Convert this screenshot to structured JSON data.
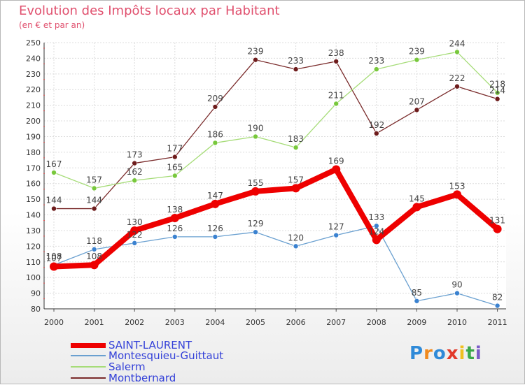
{
  "header": {
    "title": "Evolution des Impôts locaux par Habitant",
    "subtitle": "(en € et par an)"
  },
  "chart_data": {
    "type": "line",
    "title": "Evolution des Impôts locaux par Habitant",
    "subtitle": "(en € et par an)",
    "xlabel": "",
    "ylabel": "",
    "x": [
      "2000",
      "2001",
      "2002",
      "2003",
      "2004",
      "2005",
      "2006",
      "2007",
      "2008",
      "2009",
      "2010",
      "2011"
    ],
    "ylim": [
      80,
      250
    ],
    "yticks": [
      80,
      90,
      100,
      110,
      120,
      130,
      140,
      150,
      160,
      170,
      180,
      190,
      200,
      210,
      220,
      230,
      240,
      250
    ],
    "grid": true,
    "legend_position": "bottom-left",
    "series": [
      {
        "name": "SAINT-LAURENT",
        "color": "#ee0000",
        "marker_color": "#ee0000",
        "values": [
          107,
          108,
          130,
          138,
          147,
          155,
          157,
          169,
          124,
          145,
          153,
          131
        ]
      },
      {
        "name": "Montesquieu-Guittaut",
        "color": "#6aa0d0",
        "marker_color": "#3b82d0",
        "values": [
          108,
          118,
          122,
          126,
          126,
          129,
          120,
          127,
          133,
          85,
          90,
          82
        ]
      },
      {
        "name": "Salerm",
        "color": "#a6dc78",
        "marker_color": "#78c83c",
        "values": [
          167,
          157,
          162,
          165,
          186,
          190,
          183,
          211,
          233,
          239,
          244,
          218
        ]
      },
      {
        "name": "Montbernard",
        "color": "#7a2b2b",
        "marker_color": "#6e1c1c",
        "values": [
          144,
          144,
          173,
          177,
          209,
          239,
          233,
          238,
          192,
          207,
          222,
          214
        ]
      }
    ]
  },
  "brand": {
    "name": "Proxiti",
    "letters": [
      "P",
      "r",
      "o",
      "x",
      "i",
      "t",
      "i"
    ],
    "colors": [
      "#2f8ad8",
      "#f08a1e",
      "#2f8ad8",
      "#e23a2a",
      "#f0c020",
      "#3aa84a",
      "#7a5cc8"
    ]
  }
}
